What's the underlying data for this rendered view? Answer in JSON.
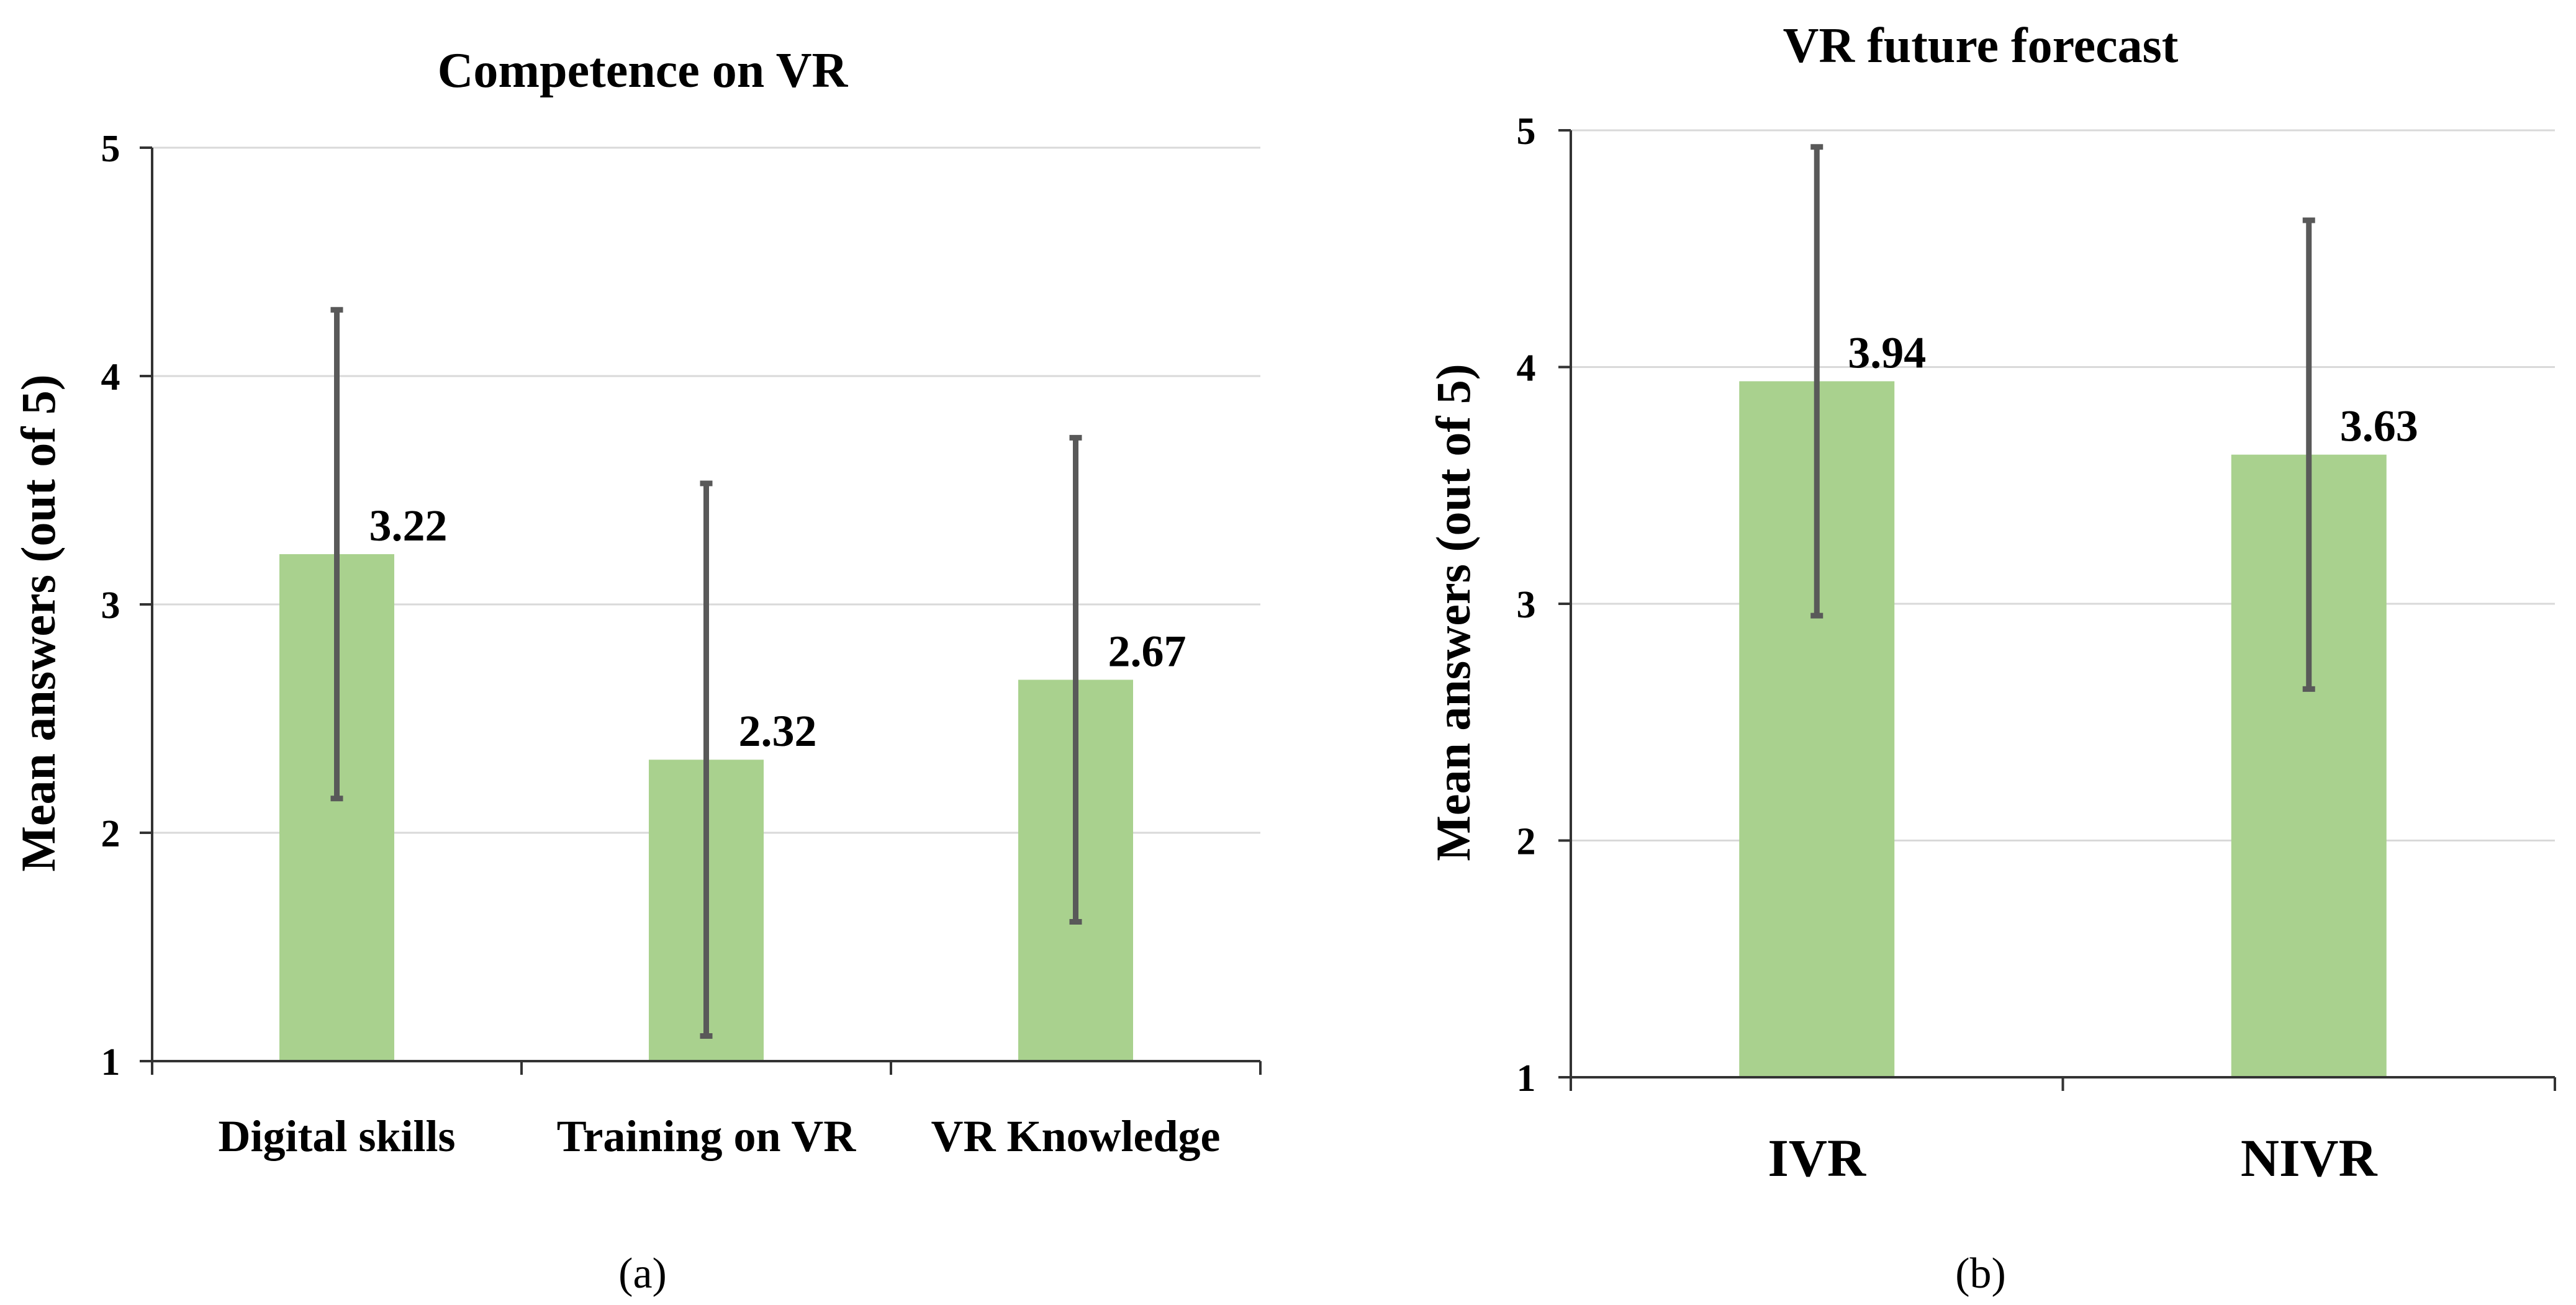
{
  "chart_data": [
    {
      "id": "a",
      "type": "bar",
      "title": "Competence on VR",
      "ylabel": "Mean answers (out of 5)",
      "xlabel": "",
      "ylim": [
        1,
        5
      ],
      "yticks": [
        "1",
        "2",
        "3",
        "4",
        "5"
      ],
      "categories": [
        "Digital skills",
        "Training on VR",
        "VR Knowledge"
      ],
      "values": [
        3.22,
        2.32,
        2.67
      ],
      "value_labels": [
        "3.22",
        "2.32",
        "2.67"
      ],
      "error_low": [
        2.15,
        1.11,
        1.61
      ],
      "error_high": [
        4.29,
        3.53,
        3.73
      ],
      "bar_color": "#a9d18e",
      "panel_label": "(a)"
    },
    {
      "id": "b",
      "type": "bar",
      "title": "VR future forecast",
      "ylabel": "Mean answers (out of 5)",
      "xlabel": "",
      "ylim": [
        1,
        5
      ],
      "yticks": [
        "1",
        "2",
        "3",
        "4",
        "5"
      ],
      "categories": [
        "IVR",
        "NIVR"
      ],
      "values": [
        3.94,
        3.63
      ],
      "value_labels": [
        "3.94",
        "3.63"
      ],
      "error_low": [
        2.95,
        2.64
      ],
      "error_high": [
        4.93,
        4.62
      ],
      "bar_color": "#a9d18e",
      "panel_label": "(b)"
    }
  ]
}
